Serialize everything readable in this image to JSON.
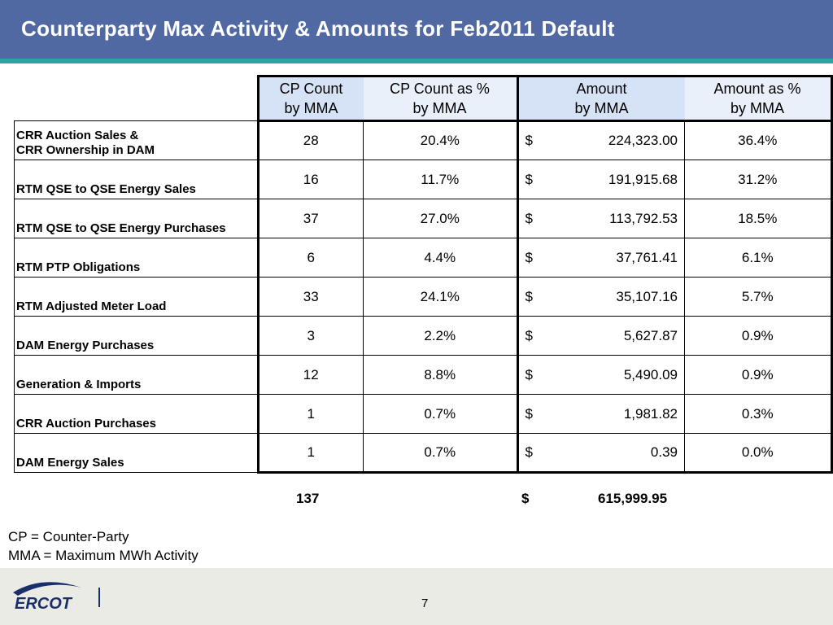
{
  "title": "Counterparty Max Activity & Amounts for Feb2011 Default",
  "header": {
    "cp_count": "CP Count\nby MMA",
    "cp_count_pct": "CP Count as %\nby MMA",
    "amount": "Amount\nby MMA",
    "amount_pct": "Amount as %\nby MMA"
  },
  "rows": [
    {
      "label": "CRR  Auction Sales &\nCRR Ownership in DAM",
      "count": "28",
      "count_pct": "20.4%",
      "currency": "$",
      "amount": "224,323.00",
      "amount_pct": "36.4%"
    },
    {
      "label": "RTM QSE to QSE Energy Sales",
      "count": "16",
      "count_pct": "11.7%",
      "currency": "$",
      "amount": "191,915.68",
      "amount_pct": "31.2%"
    },
    {
      "label": "RTM QSE to QSE Energy Purchases",
      "count": "37",
      "count_pct": "27.0%",
      "currency": "$",
      "amount": "113,792.53",
      "amount_pct": "18.5%"
    },
    {
      "label": "RTM PTP Obligations",
      "count": "6",
      "count_pct": "4.4%",
      "currency": "$",
      "amount": "37,761.41",
      "amount_pct": "6.1%"
    },
    {
      "label": "RTM Adjusted Meter Load",
      "count": "33",
      "count_pct": "24.1%",
      "currency": "$",
      "amount": "35,107.16",
      "amount_pct": "5.7%"
    },
    {
      "label": "DAM Energy Purchases",
      "count": "3",
      "count_pct": "2.2%",
      "currency": "$",
      "amount": "5,627.87",
      "amount_pct": "0.9%"
    },
    {
      "label": "Generation & Imports",
      "count": "12",
      "count_pct": "8.8%",
      "currency": "$",
      "amount": "5,490.09",
      "amount_pct": "0.9%"
    },
    {
      "label": "CRR Auction Purchases",
      "count": "1",
      "count_pct": "0.7%",
      "currency": "$",
      "amount": "1,981.82",
      "amount_pct": "0.3%"
    },
    {
      "label": "DAM Energy Sales",
      "count": "1",
      "count_pct": "0.7%",
      "currency": "$",
      "amount": "0.39",
      "amount_pct": "0.0%"
    }
  ],
  "totals": {
    "count": "137",
    "currency": "$",
    "amount": "615,999.95"
  },
  "notes": {
    "line1": "CP = Counter-Party",
    "line2": "MMA = Maximum MWh Activity"
  },
  "footer": {
    "logo_text": "ERCOT",
    "page_number": "7"
  },
  "colors": {
    "title_bar": "#5069a3",
    "title_stripe": "#2aa5a6",
    "header_fill_dark": "#d6e2f5",
    "header_fill_light": "#eaf0fa",
    "footer_bg": "#ebebe6",
    "logo_blue": "#1a2f6a"
  }
}
